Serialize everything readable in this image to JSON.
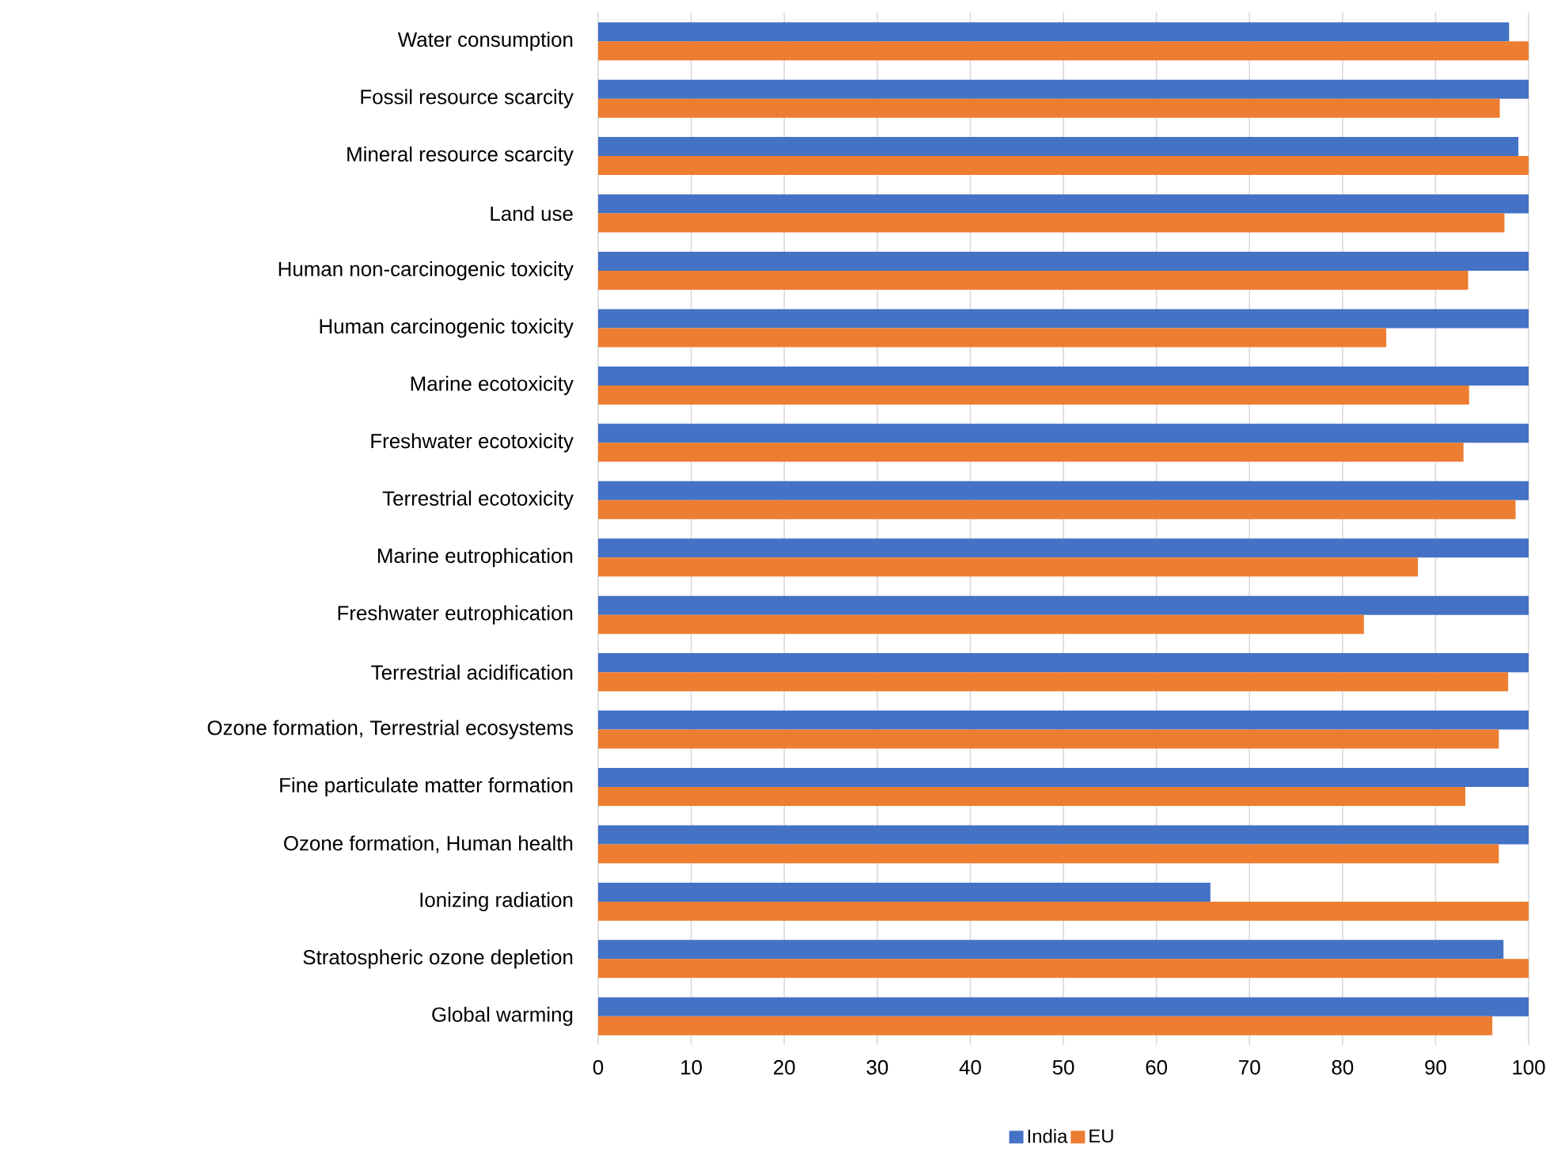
{
  "chart_data": {
    "type": "bar",
    "orientation": "horizontal",
    "categories": [
      "Water consumption",
      "Fossil resource scarcity",
      "Mineral resource scarcity",
      "Land use",
      "Human non-carcinogenic toxicity",
      "Human carcinogenic toxicity",
      "Marine ecotoxicity",
      "Freshwater ecotoxicity",
      "Terrestrial ecotoxicity",
      "Marine eutrophication",
      "Freshwater eutrophication",
      "Terrestrial acidification",
      "Ozone formation, Terrestrial ecosystems",
      "Fine particulate matter formation",
      "Ozone formation, Human health",
      "Ionizing radiation",
      "Stratospheric ozone depletion",
      "Global warming"
    ],
    "series": [
      {
        "name": "India",
        "color": "#4472c4",
        "values": [
          97.9,
          100,
          98.9,
          100,
          100,
          100,
          100,
          100,
          100,
          100,
          100,
          100,
          100,
          100,
          100,
          65.8,
          97.3,
          100
        ]
      },
      {
        "name": "EU",
        "color": "#ed7d31",
        "values": [
          100,
          96.9,
          100,
          97.4,
          93.5,
          84.7,
          93.6,
          93.0,
          98.6,
          88.1,
          82.3,
          97.8,
          96.8,
          93.2,
          96.8,
          100,
          100,
          96.1
        ]
      }
    ],
    "xlim": [
      0,
      100
    ],
    "xticks": [
      0,
      10,
      20,
      30,
      40,
      50,
      60,
      70,
      80,
      90,
      100
    ],
    "grid": "x",
    "legend": "bottom"
  }
}
